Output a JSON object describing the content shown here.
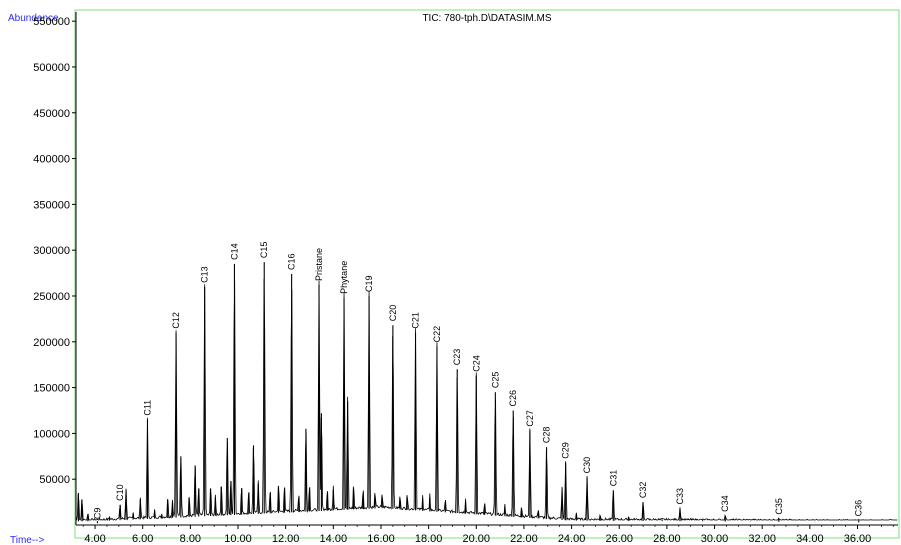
{
  "chart_data": {
    "type": "line",
    "title": "TIC: 780-tph.D\\DATASIM.MS",
    "ylabel": "Abundance",
    "xlabel": "Time-->",
    "xlim": [
      3.2,
      37.7
    ],
    "ylim": [
      0,
      560000
    ],
    "x_ticks": [
      4.0,
      6.0,
      8.0,
      10.0,
      12.0,
      14.0,
      16.0,
      18.0,
      20.0,
      22.0,
      24.0,
      26.0,
      28.0,
      30.0,
      32.0,
      34.0,
      36.0
    ],
    "x_tick_labels": [
      "4.00",
      "6.00",
      "8.00",
      "10.00",
      "12.00",
      "14.00",
      "16.00",
      "18.00",
      "20.00",
      "22.00",
      "24.00",
      "26.00",
      "28.00",
      "30.00",
      "32.00",
      "34.00",
      "36.00"
    ],
    "y_ticks": [
      50000,
      100000,
      150000,
      200000,
      250000,
      300000,
      350000,
      400000,
      450000,
      500000,
      550000
    ],
    "y_tick_labels": [
      "50000",
      "100000",
      "150000",
      "200000",
      "250000",
      "300000",
      "350000",
      "400000",
      "450000",
      "500000",
      "550000"
    ],
    "line_color": "#000000",
    "axis_label_color": "#2b2bff",
    "frame_color": "#7fe07f",
    "labeled_peaks": [
      {
        "label": "C9",
        "x": 4.1,
        "y": 2000
      },
      {
        "label": "C10",
        "x": 5.05,
        "y": 22000
      },
      {
        "label": "C11",
        "x": 6.2,
        "y": 115000
      },
      {
        "label": "C12",
        "x": 7.4,
        "y": 210000
      },
      {
        "label": "C13",
        "x": 8.6,
        "y": 260000
      },
      {
        "label": "C14",
        "x": 9.85,
        "y": 285000
      },
      {
        "label": "C15",
        "x": 11.1,
        "y": 287000
      },
      {
        "label": "C16",
        "x": 12.25,
        "y": 274000
      },
      {
        "label": "Pristane",
        "x": 13.4,
        "y": 262000
      },
      {
        "label": "Phytane",
        "x": 14.45,
        "y": 248000
      },
      {
        "label": "C19",
        "x": 15.5,
        "y": 250000
      },
      {
        "label": "C20",
        "x": 16.5,
        "y": 218000
      },
      {
        "label": "C21",
        "x": 17.45,
        "y": 210000
      },
      {
        "label": "C22",
        "x": 18.35,
        "y": 195000
      },
      {
        "label": "C23",
        "x": 19.2,
        "y": 170000
      },
      {
        "label": "C24",
        "x": 20.0,
        "y": 163000
      },
      {
        "label": "C25",
        "x": 20.8,
        "y": 145000
      },
      {
        "label": "C26",
        "x": 21.55,
        "y": 125000
      },
      {
        "label": "C27",
        "x": 22.25,
        "y": 103000
      },
      {
        "label": "C28",
        "x": 22.95,
        "y": 85000
      },
      {
        "label": "C29",
        "x": 23.75,
        "y": 68000
      },
      {
        "label": "C30",
        "x": 24.65,
        "y": 52000
      },
      {
        "label": "C31",
        "x": 25.75,
        "y": 38000
      },
      {
        "label": "C32",
        "x": 27.0,
        "y": 25000
      },
      {
        "label": "C33",
        "x": 28.55,
        "y": 18000
      },
      {
        "label": "C34",
        "x": 30.45,
        "y": 10000
      },
      {
        "label": "C35",
        "x": 32.7,
        "y": 7000
      },
      {
        "label": "C36",
        "x": 36.05,
        "y": 5000
      }
    ],
    "minor_peaks": [
      {
        "x": 3.3,
        "y": 35000
      },
      {
        "x": 3.45,
        "y": 28000
      },
      {
        "x": 3.7,
        "y": 12000
      },
      {
        "x": 4.6,
        "y": 8000
      },
      {
        "x": 5.3,
        "y": 38000
      },
      {
        "x": 5.6,
        "y": 12000
      },
      {
        "x": 5.9,
        "y": 28000
      },
      {
        "x": 6.5,
        "y": 15000
      },
      {
        "x": 6.8,
        "y": 10000
      },
      {
        "x": 7.05,
        "y": 28000
      },
      {
        "x": 7.25,
        "y": 25000
      },
      {
        "x": 7.6,
        "y": 75000
      },
      {
        "x": 7.95,
        "y": 30000
      },
      {
        "x": 8.2,
        "y": 65000
      },
      {
        "x": 8.35,
        "y": 40000
      },
      {
        "x": 8.85,
        "y": 40000
      },
      {
        "x": 9.05,
        "y": 30000
      },
      {
        "x": 9.3,
        "y": 42000
      },
      {
        "x": 9.55,
        "y": 95000
      },
      {
        "x": 9.7,
        "y": 48000
      },
      {
        "x": 10.15,
        "y": 40000
      },
      {
        "x": 10.45,
        "y": 35000
      },
      {
        "x": 10.65,
        "y": 87000
      },
      {
        "x": 10.85,
        "y": 45000
      },
      {
        "x": 11.35,
        "y": 35000
      },
      {
        "x": 11.7,
        "y": 42000
      },
      {
        "x": 11.95,
        "y": 40000
      },
      {
        "x": 12.55,
        "y": 30000
      },
      {
        "x": 12.85,
        "y": 105000
      },
      {
        "x": 13.0,
        "y": 40000
      },
      {
        "x": 13.5,
        "y": 122000
      },
      {
        "x": 13.75,
        "y": 35000
      },
      {
        "x": 14.0,
        "y": 38000
      },
      {
        "x": 14.6,
        "y": 135000
      },
      {
        "x": 14.85,
        "y": 40000
      },
      {
        "x": 15.25,
        "y": 35000
      },
      {
        "x": 15.75,
        "y": 32000
      },
      {
        "x": 16.05,
        "y": 30000
      },
      {
        "x": 16.8,
        "y": 28000
      },
      {
        "x": 17.1,
        "y": 30000
      },
      {
        "x": 17.75,
        "y": 28000
      },
      {
        "x": 18.05,
        "y": 30000
      },
      {
        "x": 18.7,
        "y": 25000
      },
      {
        "x": 19.55,
        "y": 25000
      },
      {
        "x": 20.35,
        "y": 22000
      },
      {
        "x": 21.2,
        "y": 20000
      },
      {
        "x": 21.9,
        "y": 18000
      },
      {
        "x": 22.6,
        "y": 15000
      },
      {
        "x": 23.6,
        "y": 40000
      },
      {
        "x": 24.2,
        "y": 12000
      },
      {
        "x": 25.2,
        "y": 10000
      },
      {
        "x": 26.4,
        "y": 8000
      },
      {
        "x": 27.8,
        "y": 6000
      },
      {
        "x": 29.5,
        "y": 5000
      },
      {
        "x": 31.5,
        "y": 4000
      },
      {
        "x": 34.2,
        "y": 3000
      }
    ]
  }
}
